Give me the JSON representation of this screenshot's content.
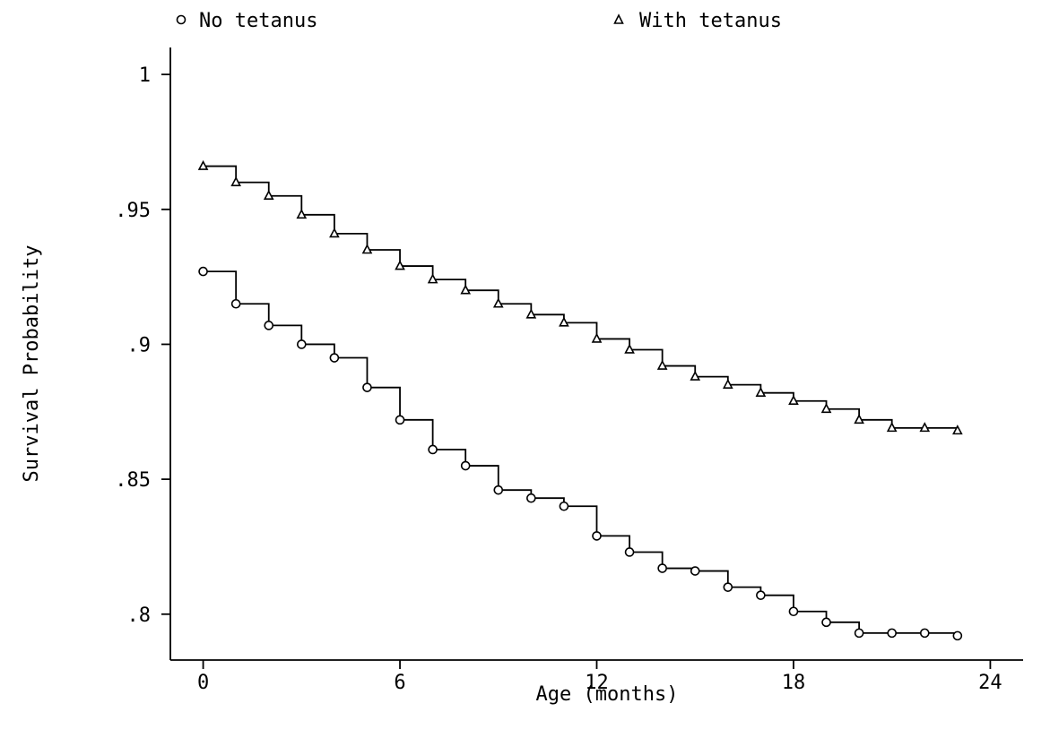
{
  "chart_data": {
    "type": "line",
    "step": true,
    "xlabel": "Age (months)",
    "ylabel": "Survival Probability",
    "xlim": [
      -1,
      25
    ],
    "ylim": [
      0.783,
      1.01
    ],
    "xticks": [
      0,
      6,
      12,
      18,
      24
    ],
    "xtick_labels": [
      "0",
      "6",
      "12",
      "18",
      "24"
    ],
    "yticks": [
      0.8,
      0.85,
      0.9,
      0.95,
      1.0
    ],
    "ytick_labels": [
      ".8",
      ".85",
      ".9",
      ".95",
      "1"
    ],
    "grid": false,
    "legend_position": "top",
    "series": [
      {
        "name": "No tetanus",
        "marker": "circle",
        "x": [
          0,
          1,
          2,
          3,
          4,
          5,
          6,
          7,
          8,
          9,
          10,
          11,
          12,
          13,
          14,
          15,
          16,
          17,
          18,
          19,
          20,
          21,
          22,
          23
        ],
        "values": [
          0.927,
          0.915,
          0.907,
          0.9,
          0.895,
          0.884,
          0.872,
          0.861,
          0.855,
          0.846,
          0.843,
          0.84,
          0.829,
          0.823,
          0.817,
          0.816,
          0.81,
          0.807,
          0.801,
          0.797,
          0.793,
          0.793,
          0.793,
          0.792
        ]
      },
      {
        "name": "With tetanus",
        "marker": "triangle",
        "x": [
          0,
          1,
          2,
          3,
          4,
          5,
          6,
          7,
          8,
          9,
          10,
          11,
          12,
          13,
          14,
          15,
          16,
          17,
          18,
          19,
          20,
          21,
          22,
          23
        ],
        "values": [
          0.966,
          0.96,
          0.955,
          0.948,
          0.941,
          0.935,
          0.929,
          0.924,
          0.92,
          0.915,
          0.911,
          0.908,
          0.902,
          0.898,
          0.892,
          0.888,
          0.885,
          0.882,
          0.879,
          0.876,
          0.872,
          0.869,
          0.869,
          0.868
        ]
      }
    ]
  }
}
